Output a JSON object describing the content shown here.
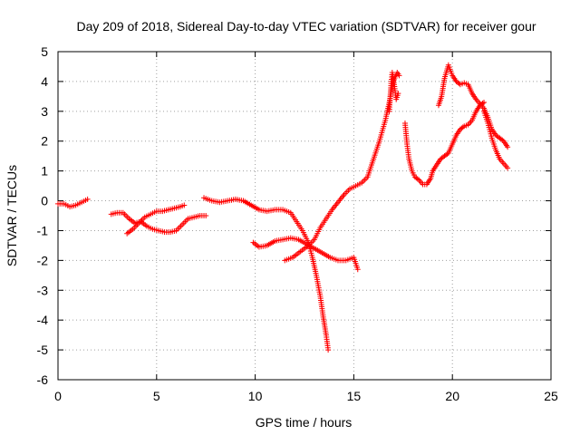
{
  "chart_data": {
    "type": "scatter",
    "title": "Day 209 of 2018, Sidereal Day-to-day VTEC variation (SDTVAR) for receiver gour",
    "xlabel": "GPS time / hours",
    "ylabel": "SDTVAR / TECUs",
    "xlim": [
      0,
      25
    ],
    "ylim": [
      -6,
      5
    ],
    "xticks": [
      "0",
      "5",
      "10",
      "15",
      "20",
      "25"
    ],
    "yticks": [
      "-6",
      "-5",
      "-4",
      "-3",
      "-2",
      "-1",
      "0",
      "1",
      "2",
      "3",
      "4",
      "5"
    ],
    "grid": true,
    "marker": "plus",
    "color": "#ff0000",
    "series": [
      {
        "points": [
          [
            0.0,
            -0.1
          ],
          [
            0.3,
            -0.1
          ],
          [
            0.6,
            -0.2
          ],
          [
            0.9,
            -0.15
          ],
          [
            1.2,
            -0.05
          ],
          [
            1.5,
            0.05
          ]
        ]
      },
      {
        "points": [
          [
            2.7,
            -0.45
          ],
          [
            3.0,
            -0.4
          ],
          [
            3.3,
            -0.4
          ],
          [
            3.6,
            -0.6
          ],
          [
            3.9,
            -0.75
          ],
          [
            4.2,
            -0.7
          ],
          [
            4.5,
            -0.85
          ],
          [
            4.8,
            -0.95
          ],
          [
            5.1,
            -1.0
          ],
          [
            5.4,
            -1.05
          ],
          [
            5.7,
            -1.05
          ],
          [
            6.0,
            -1.0
          ],
          [
            6.3,
            -0.8
          ],
          [
            6.6,
            -0.6
          ],
          [
            6.9,
            -0.55
          ],
          [
            7.2,
            -0.5
          ],
          [
            7.5,
            -0.5
          ]
        ]
      },
      {
        "points": [
          [
            3.5,
            -1.1
          ],
          [
            3.8,
            -0.95
          ],
          [
            4.1,
            -0.75
          ],
          [
            4.4,
            -0.55
          ],
          [
            4.7,
            -0.45
          ],
          [
            5.0,
            -0.35
          ],
          [
            5.3,
            -0.35
          ],
          [
            5.6,
            -0.3
          ],
          [
            5.9,
            -0.25
          ],
          [
            6.2,
            -0.2
          ],
          [
            6.4,
            -0.15
          ]
        ]
      },
      {
        "points": [
          [
            7.4,
            0.1
          ],
          [
            7.8,
            0.0
          ],
          [
            8.2,
            -0.05
          ],
          [
            8.6,
            0.0
          ],
          [
            9.0,
            0.05
          ],
          [
            9.4,
            0.0
          ],
          [
            9.8,
            -0.15
          ],
          [
            10.2,
            -0.3
          ],
          [
            10.6,
            -0.35
          ],
          [
            11.0,
            -0.3
          ],
          [
            11.4,
            -0.3
          ],
          [
            11.8,
            -0.4
          ],
          [
            12.1,
            -0.7
          ],
          [
            12.4,
            -1.0
          ],
          [
            12.7,
            -1.4
          ],
          [
            12.9,
            -1.9
          ],
          [
            13.1,
            -2.5
          ],
          [
            13.3,
            -3.2
          ],
          [
            13.45,
            -3.9
          ],
          [
            13.6,
            -4.5
          ],
          [
            13.7,
            -5.0
          ]
        ]
      },
      {
        "points": [
          [
            9.9,
            -1.4
          ],
          [
            10.2,
            -1.55
          ],
          [
            10.6,
            -1.5
          ],
          [
            11.0,
            -1.35
          ],
          [
            11.4,
            -1.3
          ],
          [
            11.8,
            -1.25
          ],
          [
            12.2,
            -1.3
          ],
          [
            12.6,
            -1.45
          ],
          [
            13.0,
            -1.6
          ],
          [
            13.4,
            -1.75
          ],
          [
            13.8,
            -1.9
          ],
          [
            14.2,
            -2.0
          ],
          [
            14.6,
            -2.0
          ],
          [
            15.0,
            -1.9
          ],
          [
            15.2,
            -2.3
          ]
        ]
      },
      {
        "points": [
          [
            11.5,
            -2.0
          ],
          [
            11.9,
            -1.9
          ],
          [
            12.3,
            -1.7
          ],
          [
            12.7,
            -1.5
          ],
          [
            13.0,
            -1.3
          ],
          [
            13.3,
            -0.9
          ],
          [
            13.6,
            -0.6
          ],
          [
            13.9,
            -0.3
          ],
          [
            14.2,
            -0.05
          ],
          [
            14.5,
            0.2
          ],
          [
            14.8,
            0.4
          ],
          [
            15.1,
            0.5
          ],
          [
            15.4,
            0.6
          ],
          [
            15.7,
            0.8
          ],
          [
            16.0,
            1.4
          ],
          [
            16.3,
            2.0
          ],
          [
            16.6,
            2.7
          ],
          [
            16.8,
            3.3
          ],
          [
            17.0,
            4.0
          ],
          [
            17.2,
            4.3
          ],
          [
            17.3,
            4.2
          ]
        ]
      },
      {
        "points": [
          [
            16.8,
            3.0
          ],
          [
            16.85,
            3.5
          ],
          [
            16.9,
            4.0
          ],
          [
            16.95,
            4.3
          ],
          [
            17.05,
            3.9
          ],
          [
            17.15,
            3.4
          ],
          [
            17.25,
            3.6
          ]
        ]
      },
      {
        "points": [
          [
            17.6,
            2.6
          ],
          [
            17.7,
            1.9
          ],
          [
            17.8,
            1.4
          ],
          [
            17.95,
            1.0
          ],
          [
            18.1,
            0.8
          ],
          [
            18.3,
            0.7
          ],
          [
            18.5,
            0.55
          ],
          [
            18.7,
            0.55
          ],
          [
            18.9,
            0.75
          ],
          [
            19.0,
            1.0
          ],
          [
            19.2,
            1.2
          ],
          [
            19.4,
            1.4
          ],
          [
            19.6,
            1.5
          ],
          [
            19.8,
            1.6
          ],
          [
            20.0,
            1.9
          ],
          [
            20.2,
            2.2
          ],
          [
            20.4,
            2.4
          ],
          [
            20.6,
            2.5
          ],
          [
            20.8,
            2.55
          ],
          [
            21.0,
            2.7
          ],
          [
            21.2,
            3.0
          ],
          [
            21.4,
            3.2
          ],
          [
            21.6,
            3.3
          ]
        ]
      },
      {
        "points": [
          [
            19.3,
            3.2
          ],
          [
            19.45,
            3.5
          ],
          [
            19.6,
            4.1
          ],
          [
            19.8,
            4.55
          ],
          [
            20.0,
            4.2
          ],
          [
            20.2,
            4.0
          ],
          [
            20.4,
            3.9
          ],
          [
            20.6,
            3.95
          ],
          [
            20.8,
            3.9
          ],
          [
            21.0,
            3.6
          ],
          [
            21.2,
            3.4
          ],
          [
            21.4,
            3.25
          ],
          [
            21.6,
            3.1
          ],
          [
            21.8,
            2.8
          ],
          [
            22.0,
            2.4
          ],
          [
            22.2,
            2.2
          ],
          [
            22.4,
            2.1
          ],
          [
            22.6,
            2.0
          ],
          [
            22.8,
            1.8
          ]
        ]
      },
      {
        "points": [
          [
            21.6,
            3.0
          ],
          [
            21.8,
            2.6
          ],
          [
            22.0,
            2.1
          ],
          [
            22.2,
            1.7
          ],
          [
            22.4,
            1.4
          ],
          [
            22.6,
            1.25
          ],
          [
            22.8,
            1.1
          ]
        ]
      }
    ]
  }
}
